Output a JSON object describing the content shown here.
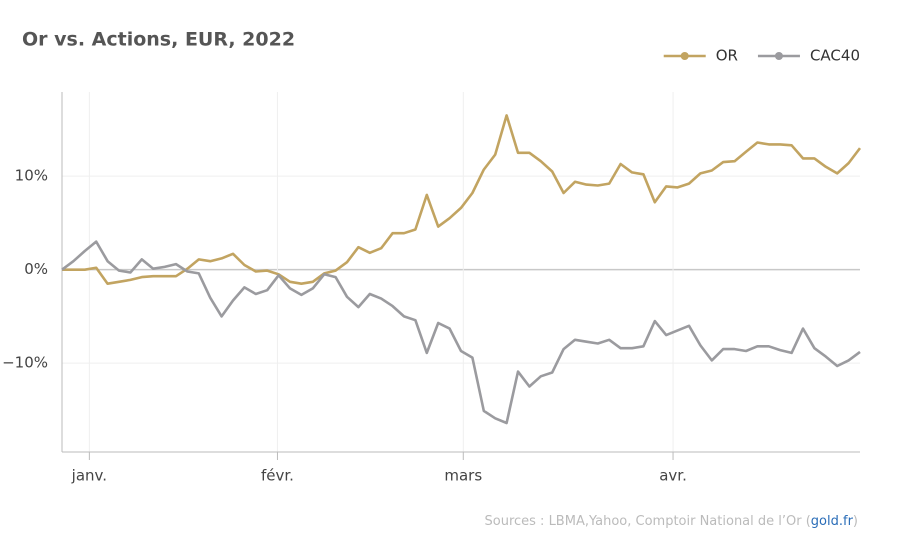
{
  "chart_data": {
    "type": "line",
    "title": "Or vs. Actions, EUR, 2022",
    "xlim": [
      0,
      70
    ],
    "xticks": [
      {
        "value": 2.4,
        "label": "janv."
      },
      {
        "value": 18.9,
        "label": "févr."
      },
      {
        "value": 35.2,
        "label": "mars"
      },
      {
        "value": 53.6,
        "label": "avr."
      }
    ],
    "ylim": [
      -19.5,
      19
    ],
    "yticks": [
      {
        "value": -10,
        "label": "−10%"
      },
      {
        "value": 0,
        "label": "0%"
      },
      {
        "value": 10,
        "label": "10%"
      }
    ],
    "grid": true,
    "legend": "top-right",
    "series": [
      {
        "name": "OR",
        "color": "#c2a461",
        "values": [
          0,
          0,
          0,
          0.2,
          -1.5,
          -1.3,
          -1.1,
          -0.8,
          -0.7,
          -0.7,
          -0.7,
          0.1,
          1.1,
          0.9,
          1.2,
          1.7,
          0.5,
          -0.2,
          -0.1,
          -0.5,
          -1.3,
          -1.5,
          -1.3,
          -0.4,
          -0.1,
          0.8,
          2.4,
          1.8,
          2.3,
          3.9,
          3.9,
          4.3,
          8.0,
          4.6,
          5.5,
          6.6,
          8.2,
          10.7,
          12.3,
          16.5,
          12.5,
          12.5,
          11.6,
          10.5,
          8.2,
          9.4,
          9.1,
          9.0,
          9.2,
          11.3,
          10.4,
          10.2,
          7.2,
          8.9,
          8.8,
          9.2,
          10.3,
          10.6,
          11.5,
          11.6,
          12.6,
          13.6,
          13.4,
          13.4,
          13.3,
          11.9,
          11.9,
          11.0,
          10.3,
          11.4,
          13.0
        ]
      },
      {
        "name": "CAC40",
        "color": "#9b9b9f",
        "values": [
          0,
          0.9,
          2.0,
          3.0,
          0.9,
          -0.1,
          -0.3,
          1.1,
          0.1,
          0.3,
          0.6,
          -0.2,
          -0.4,
          -3.0,
          -5.0,
          -3.3,
          -1.9,
          -2.6,
          -2.2,
          -0.6,
          -2.0,
          -2.7,
          -2.0,
          -0.5,
          -0.8,
          -2.9,
          -4.0,
          -2.6,
          -3.1,
          -3.9,
          -5.0,
          -5.4,
          -8.9,
          -5.7,
          -6.3,
          -8.7,
          -9.4,
          -15.1,
          -15.9,
          -16.4,
          -10.9,
          -12.5,
          -11.4,
          -11.0,
          -8.5,
          -7.5,
          -7.7,
          -7.9,
          -7.5,
          -8.4,
          -8.4,
          -8.2,
          -5.5,
          -7.0,
          -6.5,
          -6.0,
          -8.1,
          -9.7,
          -8.5,
          -8.5,
          -8.7,
          -8.2,
          -8.2,
          -8.6,
          -8.9,
          -6.3,
          -8.4,
          -9.3,
          -10.3,
          -9.7,
          -8.8
        ]
      }
    ],
    "source": {
      "prefix": "Sources : LBMA,Yahoo, Comptoir National de l’Or (",
      "link": "gold.fr",
      "suffix": ")"
    }
  }
}
